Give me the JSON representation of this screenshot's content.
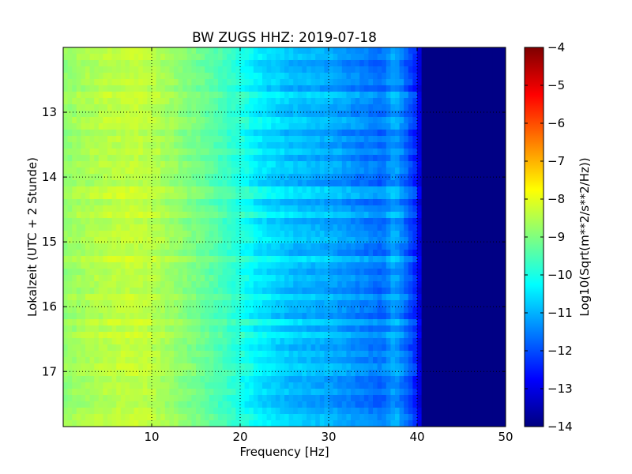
{
  "chart_data": {
    "type": "heatmap",
    "title": "BW ZUGS HHZ: 2019-07-18",
    "xlabel": "Frequency [Hz]",
    "ylabel": "Lokalzeit (UTC + 2 Stunde)",
    "colorbar_label": "Log10(Sqrt(m**2/s**2/Hz))",
    "xlim": [
      0,
      50
    ],
    "ylim": [
      12.0,
      17.85
    ],
    "y_inverted": true,
    "x_ticks": [
      10,
      20,
      30,
      40,
      50
    ],
    "x_tick_labels": [
      "10",
      "20",
      "30",
      "40",
      "50"
    ],
    "y_ticks": [
      13,
      14,
      15,
      16,
      17
    ],
    "y_tick_labels": [
      "13",
      "14",
      "15",
      "16",
      "17"
    ],
    "grid": true,
    "colormap": "jet",
    "clim": [
      -14,
      -4
    ],
    "colorbar_ticks": [
      -4,
      -5,
      -6,
      -7,
      -8,
      -9,
      -10,
      -11,
      -12,
      -13,
      -14
    ],
    "colorbar_tick_labels": [
      "−4",
      "−5",
      "−6",
      "−7",
      "−8",
      "−9",
      "−10",
      "−11",
      "−12",
      "−13",
      "−14"
    ],
    "spectrum_profile": {
      "frequency_hz": [
        0,
        2,
        5,
        8,
        10,
        13,
        16,
        19,
        21,
        22,
        24,
        26,
        28,
        30,
        32,
        34,
        36,
        37.5,
        39,
        40,
        40.5,
        42,
        45,
        50
      ],
      "log_psd": [
        -8.8,
        -8.6,
        -8.4,
        -8.3,
        -8.4,
        -8.8,
        -9.2,
        -9.7,
        -10.1,
        -10.35,
        -10.6,
        -10.8,
        -10.9,
        -11.0,
        -11.2,
        -11.4,
        -11.6,
        -11.0,
        -11.8,
        -12.4,
        -13.6,
        -13.9,
        -14.0,
        -14.0
      ]
    }
  }
}
